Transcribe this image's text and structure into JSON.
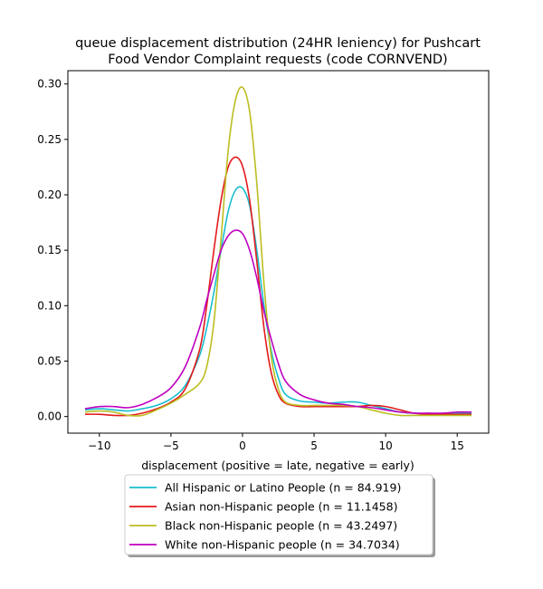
{
  "chart_data": {
    "type": "line",
    "title": "queue displacement distribution (24HR leniency) for Pushcart\nFood Vendor Complaint  requests (code CORNVEND)",
    "xlabel": "displacement (positive = late, negative = early)",
    "ylabel": "",
    "xlim": [
      -12.2,
      17.2
    ],
    "ylim": [
      -0.015,
      0.312
    ],
    "xticks": [
      -10,
      -5,
      0,
      5,
      10,
      15
    ],
    "xtick_labels": [
      "−10",
      "−5",
      "0",
      "5",
      "10",
      "15"
    ],
    "yticks": [
      0.0,
      0.05,
      0.1,
      0.15,
      0.2,
      0.25,
      0.3
    ],
    "ytick_labels": [
      "0.00",
      "0.05",
      "0.10",
      "0.15",
      "0.20",
      "0.25",
      "0.30"
    ],
    "grid": false,
    "legend_position": "below plot",
    "x": [
      -11,
      -10,
      -9,
      -8,
      -7,
      -6,
      -5,
      -4,
      -3,
      -2.5,
      -2,
      -1.5,
      -1,
      -0.5,
      0,
      0.5,
      1,
      1.5,
      2,
      2.5,
      3,
      4,
      5,
      6,
      7,
      8,
      9,
      10,
      11,
      12,
      13,
      14,
      15,
      16
    ],
    "series": [
      {
        "name": "All Hispanic or Latino People (n = 84.919)",
        "color": "#17becf",
        "values": [
          0.006,
          0.007,
          0.006,
          0.005,
          0.007,
          0.01,
          0.016,
          0.028,
          0.055,
          0.08,
          0.112,
          0.15,
          0.185,
          0.204,
          0.206,
          0.19,
          0.15,
          0.1,
          0.06,
          0.035,
          0.02,
          0.014,
          0.013,
          0.012,
          0.013,
          0.013,
          0.01,
          0.007,
          0.004,
          0.003,
          0.002,
          0.002,
          0.003,
          0.003
        ]
      },
      {
        "name": "Asian non-Hispanic people (n = 11.1458)",
        "color": "#e41a1c",
        "values": [
          0.002,
          0.002,
          0.001,
          0.001,
          0.003,
          0.007,
          0.013,
          0.025,
          0.06,
          0.1,
          0.15,
          0.195,
          0.225,
          0.234,
          0.226,
          0.195,
          0.14,
          0.08,
          0.04,
          0.02,
          0.012,
          0.009,
          0.009,
          0.009,
          0.009,
          0.009,
          0.01,
          0.009,
          0.006,
          0.003,
          0.002,
          0.002,
          0.002,
          0.002
        ]
      },
      {
        "name": "Black non-Hispanic people (n = 43.2497)",
        "color": "#bcbd22",
        "values": [
          0.004,
          0.005,
          0.004,
          0.001,
          0.001,
          0.006,
          0.012,
          0.02,
          0.03,
          0.045,
          0.085,
          0.16,
          0.24,
          0.285,
          0.297,
          0.275,
          0.21,
          0.12,
          0.055,
          0.025,
          0.013,
          0.01,
          0.01,
          0.01,
          0.01,
          0.009,
          0.006,
          0.003,
          0.001,
          0.001,
          0.001,
          0.001,
          0.001,
          0.001
        ]
      },
      {
        "name": "White non-Hispanic people (n = 34.7034)",
        "color": "#bf00bf",
        "values": [
          0.007,
          0.009,
          0.009,
          0.008,
          0.011,
          0.017,
          0.026,
          0.045,
          0.08,
          0.105,
          0.128,
          0.15,
          0.163,
          0.168,
          0.165,
          0.15,
          0.125,
          0.095,
          0.07,
          0.048,
          0.032,
          0.02,
          0.015,
          0.012,
          0.011,
          0.009,
          0.008,
          0.006,
          0.004,
          0.003,
          0.003,
          0.003,
          0.004,
          0.004
        ]
      }
    ]
  }
}
